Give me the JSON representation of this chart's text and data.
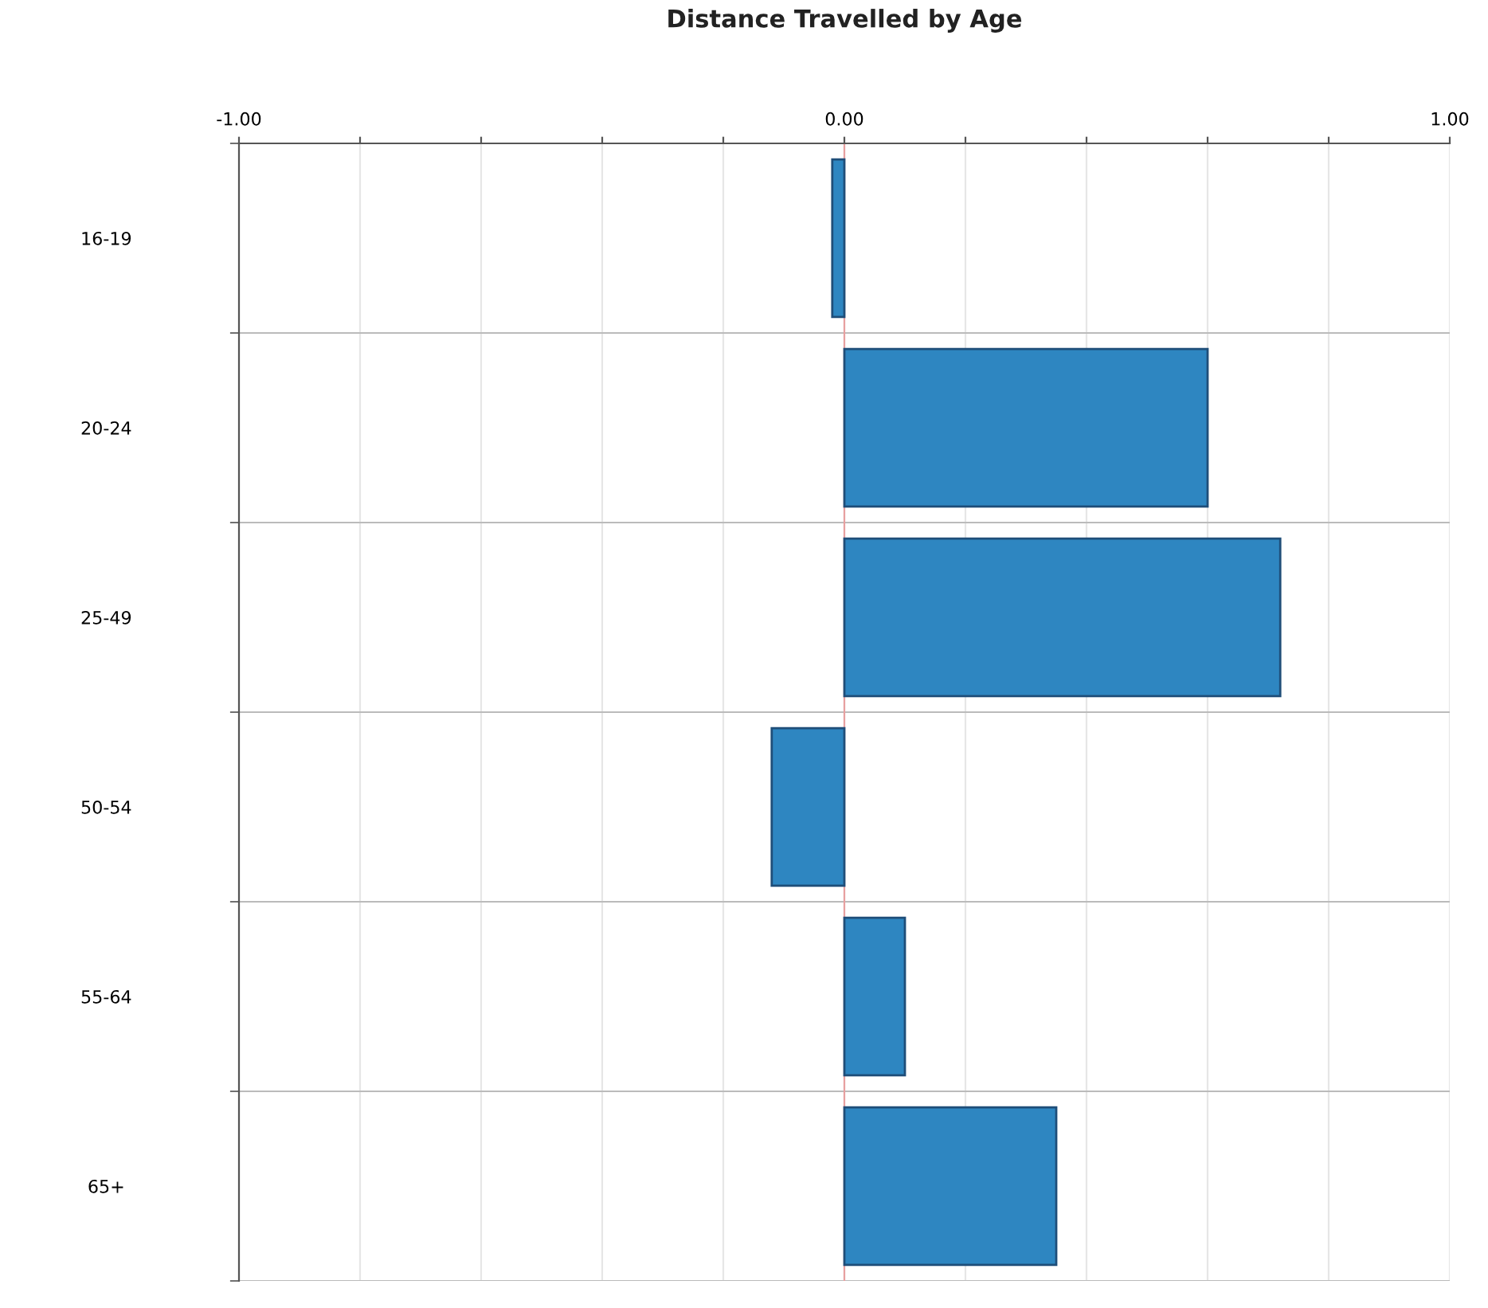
{
  "chart_data": {
    "type": "bar",
    "orientation": "horizontal",
    "title": "Distance Travelled by Age",
    "categories": [
      "16-19",
      "20-24",
      "25-49",
      "50-54",
      "55-64",
      "65+"
    ],
    "values": [
      -0.02,
      0.6,
      0.72,
      -0.12,
      0.1,
      0.35
    ],
    "color": "#2e86c1",
    "xlim": [
      -1,
      1
    ],
    "xticks": [
      {
        "value": -1,
        "label": "-1.00"
      },
      {
        "value": -0.8,
        "label": null
      },
      {
        "value": -0.6,
        "label": null
      },
      {
        "value": -0.4,
        "label": null
      },
      {
        "value": -0.2,
        "label": null
      },
      {
        "value": 0,
        "label": "0.00"
      },
      {
        "value": 0.2,
        "label": null
      },
      {
        "value": 0.4,
        "label": null
      },
      {
        "value": 0.6,
        "label": null
      },
      {
        "value": 0.8,
        "label": null
      },
      {
        "value": 1,
        "label": "1.00"
      }
    ],
    "ref_lines": [
      {
        "axis": "x",
        "value": 0,
        "color": "#e8a0a0"
      }
    ],
    "grid": true
  }
}
